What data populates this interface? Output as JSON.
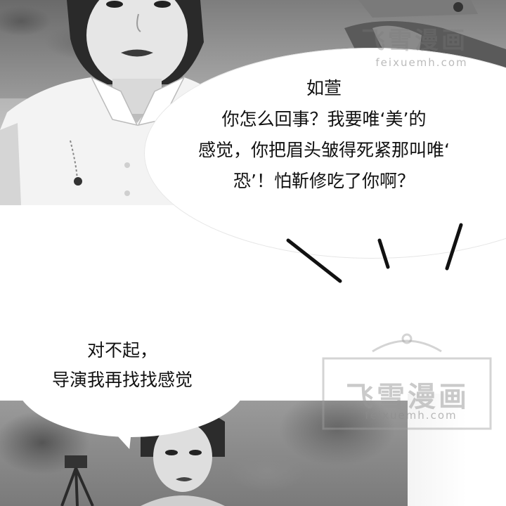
{
  "panel_top": {
    "description_icon": "photo-panel"
  },
  "bubble_main": {
    "speaker": "如萱",
    "lines": [
      "你怎么回事？我要唯‘美’的",
      "感觉，你把眉头皱得死紧那叫唯‘",
      "恐’！怕靳修吃了你啊？"
    ]
  },
  "bubble_reply": {
    "lines": [
      "对不起，",
      "导演我再找找感觉"
    ]
  },
  "watermarks": {
    "top_name": "飞雪漫画",
    "top_url": "feixuemh.com",
    "bottom_name": "飞雪漫画",
    "bottom_url": "feixuemh.com"
  },
  "colors": {
    "ink": "#111111",
    "paper": "#ffffff",
    "watermark": "#969696"
  }
}
